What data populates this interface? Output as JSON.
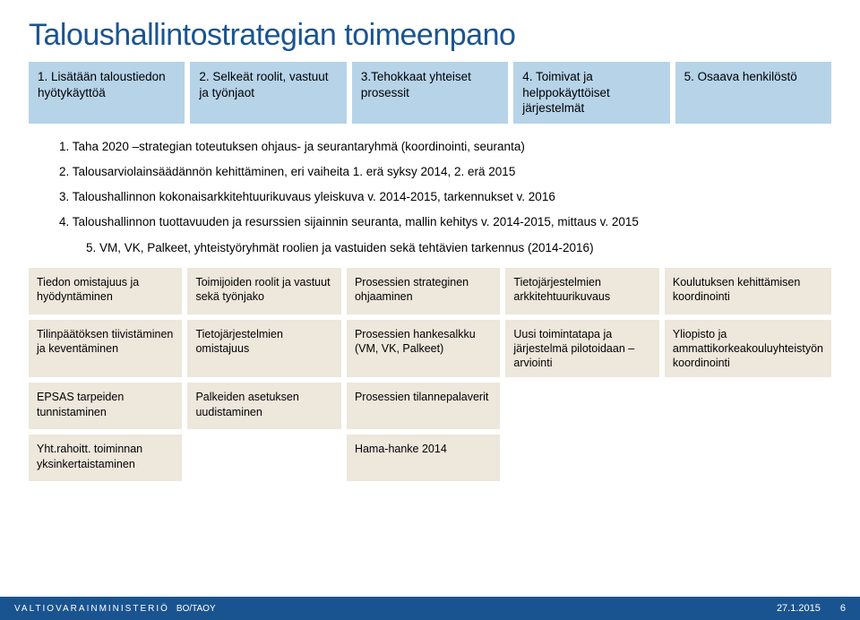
{
  "title": "Taloushallintostrategian toimeenpano",
  "top_boxes": [
    "1. Lisätään taloustiedon hyötykäyttöä",
    "2. Selkeät roolit, vastuut ja työnjaot",
    "3.Tehokkaat yhteiset prosessit",
    "4. Toimivat ja helppokäyttöiset järjestelmät",
    "5. Osaava henkilöstö"
  ],
  "numbered": [
    "1. Taha 2020 –strategian toteutuksen ohjaus- ja seurantaryhmä (koordinointi, seuranta)",
    "2. Talousarviolainsäädännön kehittäminen, eri vaiheita 1. erä syksy 2014, 2. erä 2015",
    "3. Taloushallinnon kokonaisarkkitehtuurikuvaus yleiskuva v. 2014-2015, tarkennukset v. 2016",
    "4. Taloushallinnon tuottavuuden ja resurssien sijainnin seuranta, mallin kehitys v. 2014-2015, mittaus v. 2015",
    "5. VM, VK, Palkeet, yhteistyöryhmät roolien ja vastuiden sekä tehtävien tarkennus (2014-2016)"
  ],
  "grid": {
    "rows": [
      [
        "Tiedon omistajuus ja hyödyntäminen",
        "Toimijoiden roolit ja vastuut sekä työnjako",
        "Prosessien strateginen ohjaaminen",
        "Tietojärjestelmien arkkitehtuurikuvaus",
        "Koulutuksen kehittämisen koordinointi"
      ],
      [
        "Tilinpäätöksen tiivistäminen ja keventäminen",
        "Tietojärjestelmien omistajuus",
        "Prosessien hankesalkku (VM, VK, Palkeet)",
        "Uusi toimintatapa ja järjestelmä pilotoidaan – arviointi",
        "Yliopisto ja ammattikorkeakouluyhteistyön koordinointi"
      ],
      [
        "EPSAS tarpeiden tunnistaminen",
        "Palkeiden asetuksen uudistaminen",
        "Prosessien tilannepalaverit",
        "",
        ""
      ],
      [
        "Yht.rahoitt. toiminnan yksinkertaistaminen",
        "",
        "Hama-hanke 2014",
        "",
        ""
      ]
    ]
  },
  "footer": {
    "ministry": "VALTIOVARAINMINISTERIÖ",
    "dept": "BO/TAOY",
    "date": "27.1.2015",
    "page": "6"
  },
  "colors": {
    "title": "#1a5490",
    "top_box_bg": "#b6d3e8",
    "cell_bg": "#ede7dc",
    "footer_bg": "#1a5490"
  }
}
